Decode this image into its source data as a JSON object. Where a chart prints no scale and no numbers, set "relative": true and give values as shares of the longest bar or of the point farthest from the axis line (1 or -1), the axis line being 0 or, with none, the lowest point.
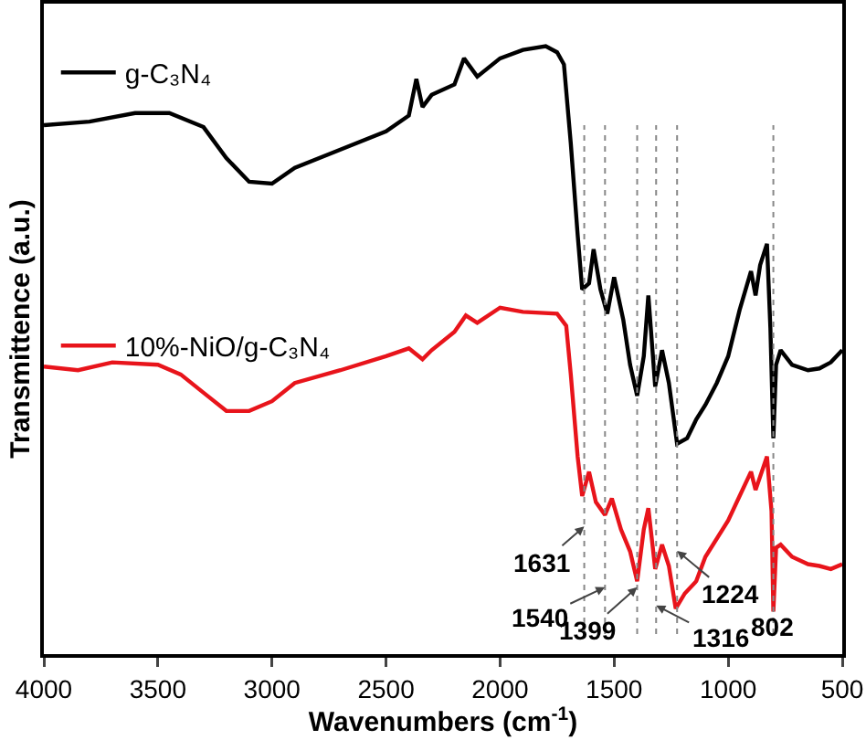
{
  "chart_data": {
    "type": "line",
    "relative": true,
    "xlabel": "Wavenumbers (cm$^{-1}$)",
    "ylabel": "Transmittence (a.u.)",
    "xlim": [
      4000,
      500
    ],
    "xticks": [
      4000,
      3500,
      3000,
      2500,
      2000,
      1500,
      1000,
      500
    ],
    "grid": false,
    "legend": "top left",
    "marker": "none",
    "line_style": "solid",
    "series": [
      {
        "name": "g-C₃N₄",
        "color": "#000000",
        "x": [
          4000,
          3800,
          3600,
          3450,
          3300,
          3200,
          3100,
          3000,
          2900,
          2700,
          2500,
          2400,
          2367,
          2340,
          2300,
          2200,
          2158,
          2100,
          2000,
          1900,
          1800,
          1750,
          1720,
          1690,
          1660,
          1640,
          1610,
          1590,
          1560,
          1530,
          1500,
          1460,
          1430,
          1399,
          1370,
          1350,
          1320,
          1290,
          1260,
          1224,
          1180,
          1140,
          1100,
          1050,
          1000,
          950,
          900,
          880,
          860,
          830,
          815,
          802,
          790,
          770,
          720,
          650,
          600,
          550,
          500
        ],
        "values": [
          0.87,
          0.876,
          0.89,
          0.89,
          0.867,
          0.816,
          0.777,
          0.774,
          0.8,
          0.83,
          0.86,
          0.886,
          0.946,
          0.9,
          0.92,
          0.937,
          0.98,
          0.95,
          0.98,
          0.994,
          1.0,
          0.99,
          0.97,
          0.84,
          0.69,
          0.6,
          0.61,
          0.666,
          0.6,
          0.56,
          0.62,
          0.55,
          0.476,
          0.425,
          0.49,
          0.59,
          0.44,
          0.5,
          0.446,
          0.346,
          0.355,
          0.386,
          0.41,
          0.446,
          0.49,
          0.566,
          0.63,
          0.59,
          0.64,
          0.675,
          0.536,
          0.355,
          0.476,
          0.5,
          0.476,
          0.467,
          0.47,
          0.48,
          0.5
        ]
      },
      {
        "name": "10%-NiO/g-C₃N₄",
        "color": "#e8141b",
        "x": [
          4000,
          3850,
          3700,
          3500,
          3400,
          3300,
          3200,
          3100,
          3000,
          2900,
          2700,
          2500,
          2400,
          2340,
          2300,
          2200,
          2150,
          2100,
          2000,
          1900,
          1750,
          1710,
          1690,
          1660,
          1640,
          1610,
          1580,
          1540,
          1510,
          1470,
          1430,
          1399,
          1370,
          1350,
          1320,
          1290,
          1260,
          1230,
          1190,
          1140,
          1100,
          1000,
          950,
          900,
          880,
          830,
          810,
          802,
          790,
          770,
          720,
          650,
          600,
          550,
          500
        ],
        "values": [
          0.473,
          0.467,
          0.48,
          0.476,
          0.46,
          0.43,
          0.4,
          0.4,
          0.416,
          0.446,
          0.467,
          0.49,
          0.503,
          0.485,
          0.5,
          0.53,
          0.557,
          0.545,
          0.57,
          0.563,
          0.56,
          0.54,
          0.46,
          0.325,
          0.26,
          0.3,
          0.25,
          0.229,
          0.256,
          0.205,
          0.169,
          0.12,
          0.205,
          0.24,
          0.14,
          0.18,
          0.145,
          0.075,
          0.1,
          0.12,
          0.16,
          0.22,
          0.26,
          0.3,
          0.27,
          0.325,
          0.235,
          0.07,
          0.175,
          0.18,
          0.16,
          0.148,
          0.145,
          0.14,
          0.148
        ]
      }
    ],
    "ref_lines": [
      {
        "axis": "x",
        "value": 1631,
        "color": "#888888",
        "line_style": "dotted"
      },
      {
        "axis": "x",
        "value": 1540,
        "color": "#888888",
        "line_style": "dotted"
      },
      {
        "axis": "x",
        "value": 1399,
        "color": "#888888",
        "line_style": "dotted"
      },
      {
        "axis": "x",
        "value": 1316,
        "color": "#888888",
        "line_style": "dotted"
      },
      {
        "axis": "x",
        "value": 1224,
        "color": "#888888",
        "line_style": "dotted"
      },
      {
        "axis": "x",
        "value": 802,
        "color": "#888888",
        "line_style": "dotted"
      }
    ],
    "annotations": [
      {
        "text": "1631",
        "x": 1631,
        "y": 0.21
      },
      {
        "text": "1540",
        "x": 1540,
        "y": 0.11
      },
      {
        "text": "1399",
        "x": 1399,
        "y": 0.11
      },
      {
        "text": "1316",
        "x": 1316,
        "y": 0.08
      },
      {
        "text": "1224",
        "x": 1224,
        "y": 0.17
      },
      {
        "text": "802",
        "x": 802,
        "y": 0.045
      }
    ]
  }
}
